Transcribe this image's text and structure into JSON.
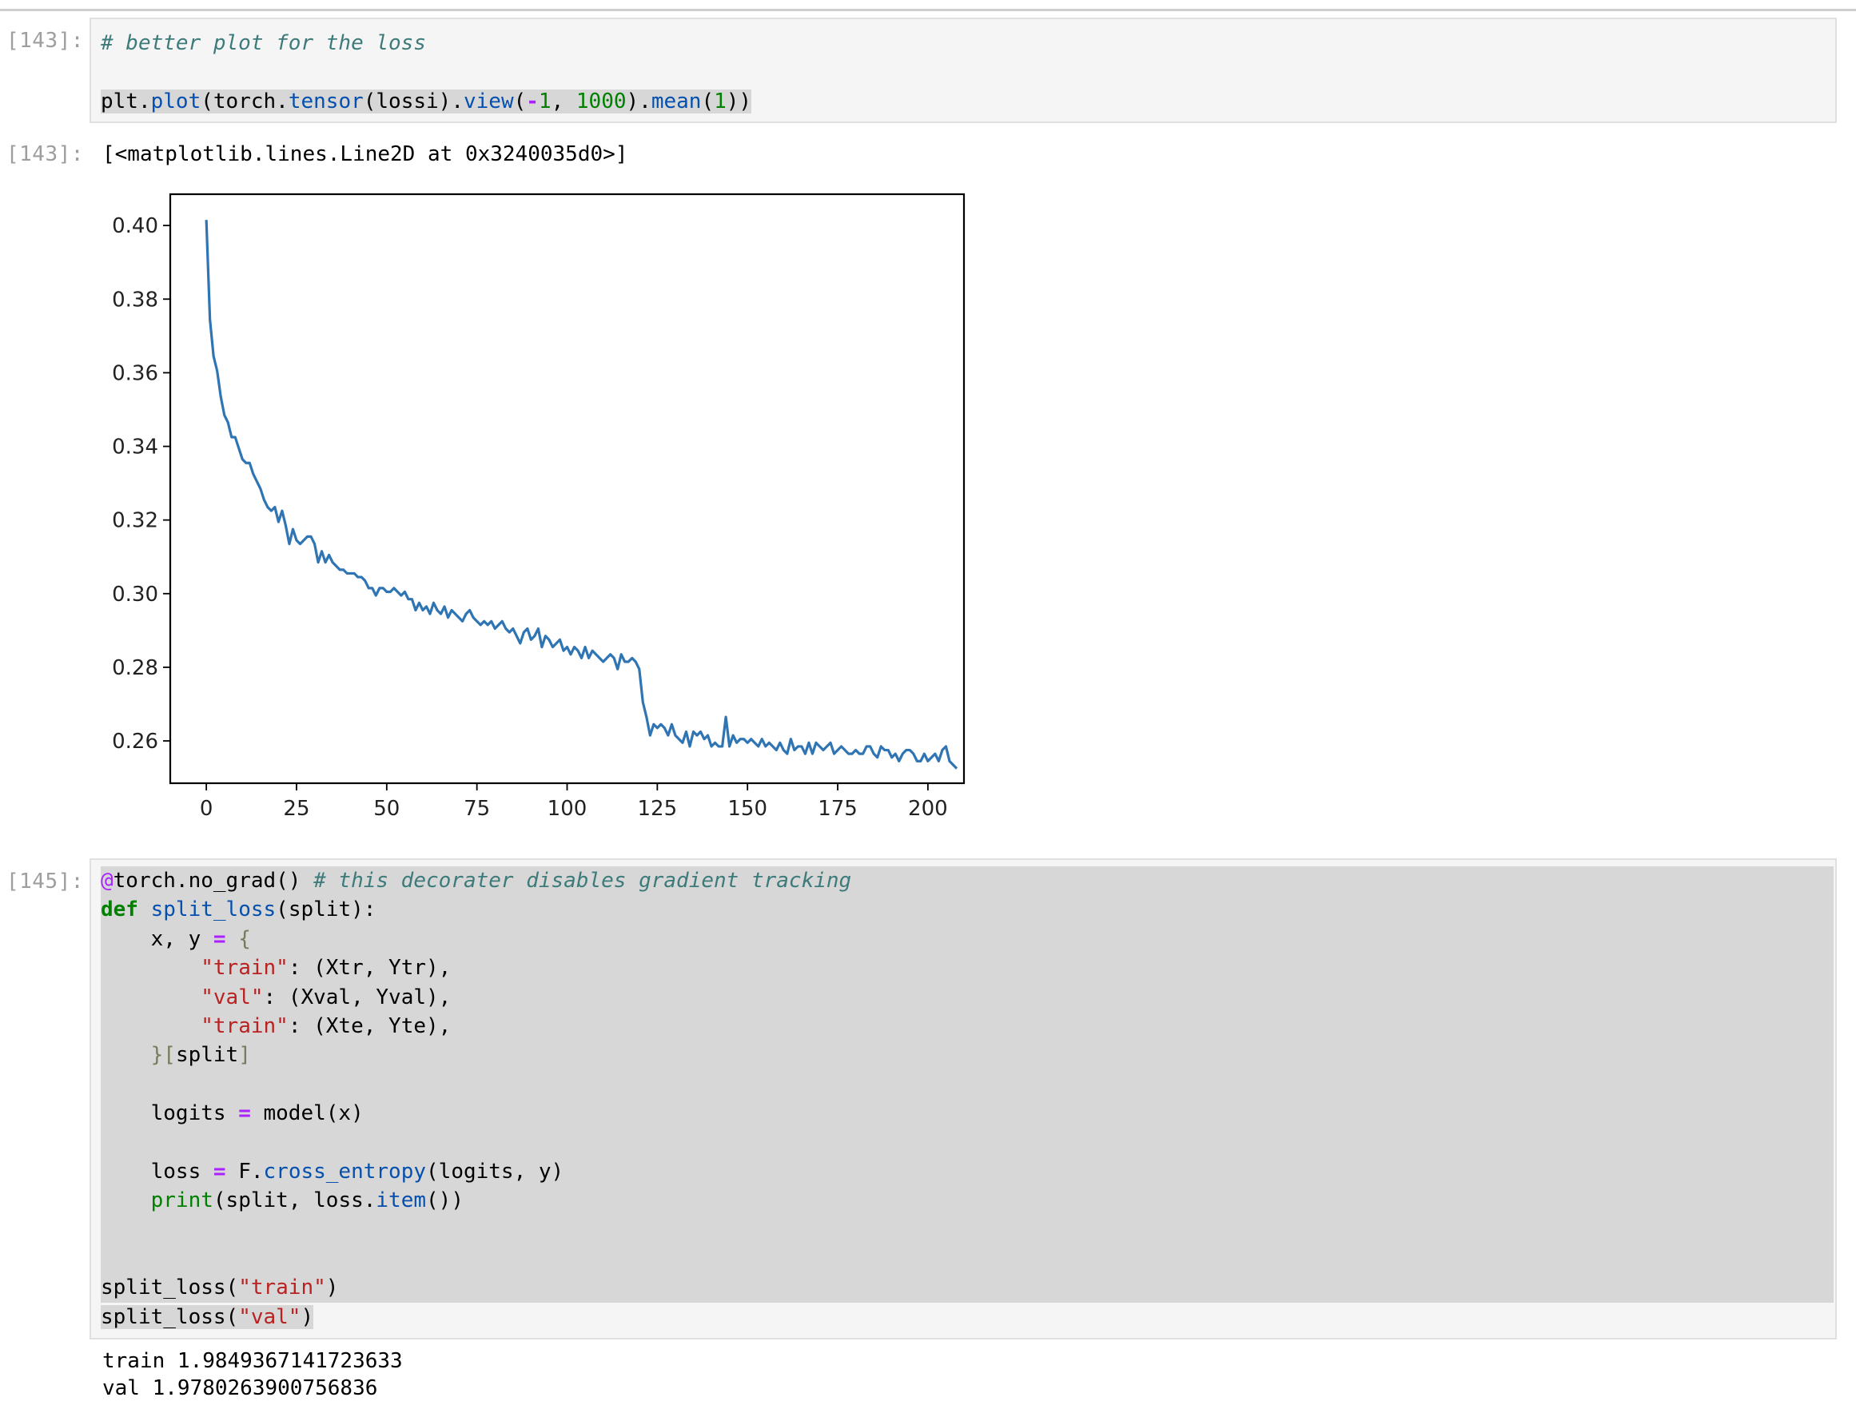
{
  "cells": [
    {
      "prompt_in": "[143]:",
      "code_lines": [
        [
          {
            "t": "# better plot for the loss",
            "c": "c-com"
          }
        ],
        [],
        [
          {
            "t": "plt.",
            "c": ""
          },
          {
            "t": "plot",
            "c": "c-fn"
          },
          {
            "t": "(torch.",
            "c": ""
          },
          {
            "t": "tensor",
            "c": "c-fn"
          },
          {
            "t": "(lossi).",
            "c": ""
          },
          {
            "t": "view",
            "c": "c-fn"
          },
          {
            "t": "(",
            "c": ""
          },
          {
            "t": "-",
            "c": "c-op"
          },
          {
            "t": "1",
            "c": "c-num"
          },
          {
            "t": ", ",
            "c": ""
          },
          {
            "t": "1000",
            "c": "c-num"
          },
          {
            "t": ").",
            "c": ""
          },
          {
            "t": "mean",
            "c": "c-fn"
          },
          {
            "t": "(",
            "c": ""
          },
          {
            "t": "1",
            "c": "c-num"
          },
          {
            "t": "))",
            "c": ""
          }
        ]
      ],
      "prompt_out": "[143]:",
      "output_text": "[<matplotlib.lines.Line2D at 0x3240035d0>]"
    },
    {
      "prompt_in": "[145]:",
      "code_lines": [
        [
          {
            "t": "@",
            "c": "c-dec"
          },
          {
            "t": "torch.no_grad() ",
            "c": ""
          },
          {
            "t": "# this decorater disables gradient tracking",
            "c": "c-com"
          }
        ],
        [
          {
            "t": "def ",
            "c": "c-kw"
          },
          {
            "t": "split_loss",
            "c": "c-fn"
          },
          {
            "t": "(split):",
            "c": ""
          }
        ],
        [
          {
            "t": "    x, y ",
            "c": ""
          },
          {
            "t": "=",
            "c": "c-op"
          },
          {
            "t": " ",
            "c": ""
          },
          {
            "t": "{",
            "c": "c-brk"
          }
        ],
        [
          {
            "t": "        ",
            "c": ""
          },
          {
            "t": "\"train\"",
            "c": "c-str"
          },
          {
            "t": ": (Xtr, Ytr),",
            "c": ""
          }
        ],
        [
          {
            "t": "        ",
            "c": ""
          },
          {
            "t": "\"val\"",
            "c": "c-str"
          },
          {
            "t": ": (Xval, Yval),",
            "c": ""
          }
        ],
        [
          {
            "t": "        ",
            "c": ""
          },
          {
            "t": "\"train\"",
            "c": "c-str"
          },
          {
            "t": ": (Xte, Yte),",
            "c": ""
          }
        ],
        [
          {
            "t": "    ",
            "c": ""
          },
          {
            "t": "}[",
            "c": "c-brk"
          },
          {
            "t": "split",
            "c": ""
          },
          {
            "t": "]",
            "c": "c-brk"
          }
        ],
        [],
        [
          {
            "t": "    logits ",
            "c": ""
          },
          {
            "t": "=",
            "c": "c-op"
          },
          {
            "t": " model(x)",
            "c": ""
          }
        ],
        [],
        [
          {
            "t": "    loss ",
            "c": ""
          },
          {
            "t": "=",
            "c": "c-op"
          },
          {
            "t": " F.",
            "c": ""
          },
          {
            "t": "cross_entropy",
            "c": "c-fn"
          },
          {
            "t": "(logits, y)",
            "c": ""
          }
        ],
        [
          {
            "t": "    ",
            "c": ""
          },
          {
            "t": "print",
            "c": "c-bi"
          },
          {
            "t": "(split, loss.",
            "c": ""
          },
          {
            "t": "item",
            "c": "c-fn"
          },
          {
            "t": "())",
            "c": ""
          }
        ],
        [],
        [],
        [
          {
            "t": "split_loss(",
            "c": ""
          },
          {
            "t": "\"train\"",
            "c": "c-str"
          },
          {
            "t": ")",
            "c": ""
          }
        ],
        [
          {
            "t": "split_loss(",
            "c": ""
          },
          {
            "t": "\"val\"",
            "c": "c-str"
          },
          {
            "t": ")",
            "c": ""
          }
        ]
      ],
      "output_lines": [
        "train 1.9849367141723633",
        "val 1.9780263900756836"
      ]
    }
  ],
  "colors": {
    "line": "#2f74b3",
    "cell_bg": "#f5f5f5",
    "selection": "#d7d7d7",
    "prompt": "#9e9e9e"
  },
  "chart_data": {
    "type": "line",
    "title": "",
    "xlabel": "",
    "ylabel": "",
    "xlim": [
      -10,
      210
    ],
    "ylim": [
      0.2485,
      0.4085
    ],
    "xticks": [
      0,
      25,
      50,
      75,
      100,
      125,
      150,
      175,
      200
    ],
    "yticks": [
      0.26,
      0.28,
      0.3,
      0.32,
      0.34,
      0.36,
      0.38,
      0.4
    ],
    "ytick_labels": [
      "0.26",
      "0.28",
      "0.30",
      "0.32",
      "0.34",
      "0.36",
      "0.38",
      "0.40"
    ],
    "grid": false,
    "series": [
      {
        "values": [
          0.4015,
          0.3745,
          0.3645,
          0.3605,
          0.3535,
          0.3485,
          0.3465,
          0.3425,
          0.3425,
          0.3395,
          0.3365,
          0.3355,
          0.3355,
          0.3325,
          0.3305,
          0.3285,
          0.3255,
          0.3235,
          0.3225,
          0.3235,
          0.3195,
          0.3225,
          0.3185,
          0.3135,
          0.3175,
          0.3145,
          0.3135,
          0.3145,
          0.3155,
          0.3155,
          0.3135,
          0.3085,
          0.3115,
          0.3085,
          0.3105,
          0.3085,
          0.3075,
          0.3065,
          0.3065,
          0.3055,
          0.3055,
          0.3055,
          0.3045,
          0.3045,
          0.3035,
          0.3015,
          0.3015,
          0.2995,
          0.3015,
          0.3015,
          0.3005,
          0.3005,
          0.3015,
          0.3005,
          0.2995,
          0.3005,
          0.2985,
          0.2985,
          0.2955,
          0.2975,
          0.2955,
          0.2965,
          0.2945,
          0.2975,
          0.2955,
          0.2945,
          0.2965,
          0.2935,
          0.2955,
          0.2945,
          0.2935,
          0.2925,
          0.2945,
          0.2955,
          0.2935,
          0.2925,
          0.2915,
          0.2925,
          0.2915,
          0.2925,
          0.2905,
          0.2915,
          0.2925,
          0.2905,
          0.2895,
          0.2905,
          0.2885,
          0.2865,
          0.2895,
          0.2905,
          0.2875,
          0.2885,
          0.2905,
          0.2855,
          0.2885,
          0.2875,
          0.2855,
          0.2865,
          0.2875,
          0.2845,
          0.2855,
          0.2835,
          0.2855,
          0.2845,
          0.2825,
          0.2855,
          0.2825,
          0.2845,
          0.2835,
          0.2825,
          0.2815,
          0.2825,
          0.2835,
          0.2825,
          0.2795,
          0.2835,
          0.2815,
          0.2815,
          0.2825,
          0.2815,
          0.2795,
          0.2705,
          0.2665,
          0.2615,
          0.2645,
          0.2635,
          0.2645,
          0.2635,
          0.2615,
          0.2645,
          0.2615,
          0.2605,
          0.2595,
          0.2625,
          0.2585,
          0.2625,
          0.2615,
          0.2625,
          0.2605,
          0.2615,
          0.2585,
          0.2595,
          0.2585,
          0.2585,
          0.2665,
          0.2585,
          0.2615,
          0.2595,
          0.2605,
          0.2605,
          0.2595,
          0.2605,
          0.2595,
          0.2585,
          0.2605,
          0.2585,
          0.2595,
          0.2585,
          0.2575,
          0.2595,
          0.2575,
          0.2565,
          0.2605,
          0.2575,
          0.2585,
          0.2585,
          0.2565,
          0.2595,
          0.2565,
          0.2595,
          0.2585,
          0.2575,
          0.2585,
          0.2595,
          0.2565,
          0.2575,
          0.2585,
          0.2575,
          0.2565,
          0.2565,
          0.2575,
          0.2565,
          0.2565,
          0.2585,
          0.2585,
          0.2565,
          0.2555,
          0.2585,
          0.2575,
          0.2575,
          0.2555,
          0.2565,
          0.2545,
          0.2565,
          0.2575,
          0.2575,
          0.2565,
          0.2545,
          0.2545,
          0.2565,
          0.2545,
          0.2555,
          0.2565,
          0.2545,
          0.2575,
          0.2585,
          0.2545,
          0.2535,
          0.2525
        ]
      }
    ]
  }
}
